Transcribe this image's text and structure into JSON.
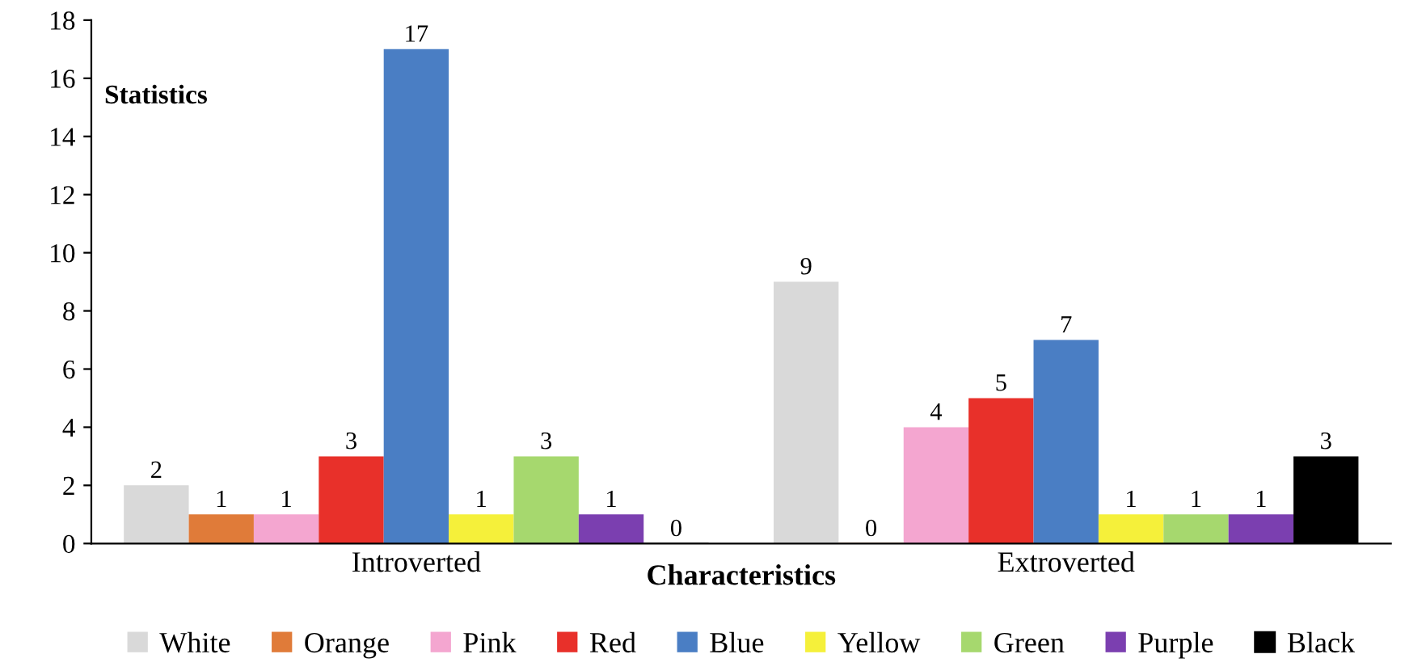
{
  "chart_data": {
    "type": "bar",
    "xlabel": "Characteristics",
    "ylabel": "Statistics",
    "categories": [
      "Introverted",
      "Extroverted"
    ],
    "series": [
      {
        "name": "White",
        "color": "#d9d9d9",
        "values": [
          2,
          9
        ]
      },
      {
        "name": "Orange",
        "color": "#e07b39",
        "values": [
          1,
          0
        ]
      },
      {
        "name": "Pink",
        "color": "#f4a6d0",
        "values": [
          1,
          4
        ]
      },
      {
        "name": "Red",
        "color": "#e8302a",
        "values": [
          3,
          5
        ]
      },
      {
        "name": "Blue",
        "color": "#4a7ec4",
        "values": [
          17,
          7
        ]
      },
      {
        "name": "Yellow",
        "color": "#f5f03a",
        "values": [
          1,
          1
        ]
      },
      {
        "name": "Green",
        "color": "#a6d86e",
        "values": [
          3,
          1
        ]
      },
      {
        "name": "Purple",
        "color": "#7b3fb0",
        "values": [
          1,
          1
        ]
      },
      {
        "name": "Black",
        "color": "#000000",
        "values": [
          0,
          3
        ]
      }
    ],
    "ylim": [
      0,
      18
    ],
    "yticks": [
      0,
      2,
      4,
      6,
      8,
      10,
      12,
      14,
      16,
      18
    ],
    "grid": false,
    "legend": "bottom",
    "data_labels": true
  }
}
